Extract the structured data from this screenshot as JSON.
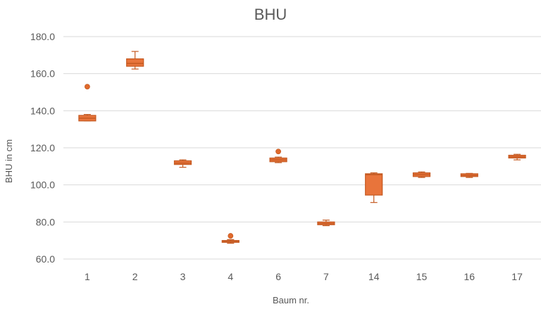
{
  "chart_data": {
    "type": "box",
    "title": "BHU",
    "xlabel": "Baum nr.",
    "ylabel": "BHU in cm",
    "ylim": [
      60,
      180
    ],
    "yticks": [
      "60.0",
      "80.0",
      "100.0",
      "120.0",
      "140.0",
      "160.0",
      "180.0"
    ],
    "ytick_values": [
      60,
      80,
      100,
      120,
      140,
      160,
      180
    ],
    "grid": true,
    "colors": {
      "box": "#e8743b",
      "edge": "#c55a22",
      "grid": "#d9d9d9",
      "text": "#595959"
    },
    "categories": [
      "1",
      "2",
      "3",
      "4",
      "6",
      "7",
      "14",
      "15",
      "16",
      "17"
    ],
    "boxes": [
      {
        "min": 134.5,
        "q1": 134.5,
        "median": 136.0,
        "q3": 137.5,
        "max": 138.0,
        "outliers": [
          153.0
        ]
      },
      {
        "min": 162.5,
        "q1": 164.0,
        "median": 165.5,
        "q3": 168.0,
        "max": 172.0,
        "outliers": []
      },
      {
        "min": 109.5,
        "q1": 111.0,
        "median": 111.8,
        "q3": 113.0,
        "max": 113.5,
        "outliers": []
      },
      {
        "min": 68.5,
        "q1": 69.0,
        "median": 69.5,
        "q3": 70.0,
        "max": 70.5,
        "outliers": [
          72.5
        ]
      },
      {
        "min": 112.0,
        "q1": 112.5,
        "median": 113.5,
        "q3": 114.5,
        "max": 115.0,
        "outliers": [
          118.0
        ]
      },
      {
        "min": 78.0,
        "q1": 78.5,
        "median": 79.2,
        "q3": 80.0,
        "max": 81.0,
        "outliers": []
      },
      {
        "min": 90.5,
        "q1": 94.5,
        "median": 105.5,
        "q3": 106.0,
        "max": 106.5,
        "outliers": []
      },
      {
        "min": 104.0,
        "q1": 104.5,
        "median": 105.5,
        "q3": 106.5,
        "max": 107.0,
        "outliers": []
      },
      {
        "min": 104.0,
        "q1": 104.5,
        "median": 105.2,
        "q3": 106.0,
        "max": 106.2,
        "outliers": []
      },
      {
        "min": 113.5,
        "q1": 114.5,
        "median": 115.2,
        "q3": 116.0,
        "max": 116.5,
        "outliers": []
      }
    ]
  }
}
